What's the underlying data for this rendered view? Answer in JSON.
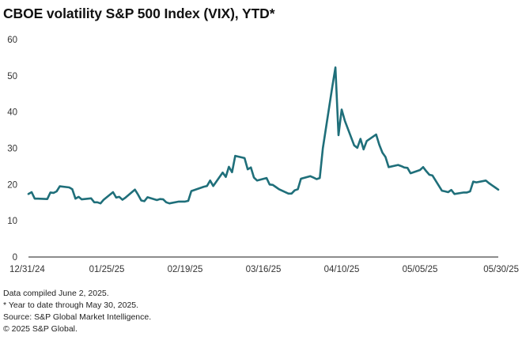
{
  "chart_data": {
    "type": "line",
    "title": "CBOE volatility S&P 500 Index (VIX), YTD*",
    "xlabel": "",
    "ylabel": "",
    "ylim": [
      0,
      60
    ],
    "yticks": [
      "0",
      "10",
      "20",
      "30",
      "40",
      "50",
      "60"
    ],
    "xticks": [
      "12/31/24",
      "01/25/25",
      "02/19/25",
      "03/16/25",
      "04/10/25",
      "05/05/25",
      "05/30/25"
    ],
    "grid": false,
    "color": "#1f6f7a",
    "series": [
      {
        "name": "VIX",
        "x": [
          0,
          1,
          2,
          3,
          6,
          7,
          8,
          9,
          10,
          13,
          14,
          15,
          16,
          17,
          20,
          21,
          22,
          23,
          24,
          27,
          28,
          29,
          30,
          31,
          34,
          35,
          36,
          37,
          38,
          41,
          42,
          43,
          44,
          45,
          48,
          49,
          50,
          51,
          52,
          55,
          56,
          57,
          58,
          59,
          62,
          63,
          64,
          65,
          66,
          69,
          70,
          71,
          72,
          73,
          76,
          77,
          78,
          79,
          80,
          83,
          84,
          85,
          86,
          87,
          90,
          91,
          92,
          93,
          94,
          97,
          98,
          99,
          100,
          101,
          104,
          105,
          106,
          107,
          108,
          111,
          112,
          113,
          114,
          115,
          118,
          119,
          120,
          121,
          122,
          125,
          126,
          127,
          128,
          129,
          132,
          133,
          134,
          135,
          136,
          139,
          140,
          141,
          142,
          143,
          146,
          147,
          148,
          149,
          150
        ],
        "values": [
          17.4,
          17.9,
          16.1,
          16.1,
          16.0,
          17.8,
          17.7,
          18.1,
          19.5,
          19.2,
          18.7,
          16.1,
          16.6,
          15.9,
          16.2,
          15.1,
          15.1,
          14.8,
          15.8,
          17.9,
          16.4,
          16.6,
          15.8,
          16.4,
          18.6,
          17.2,
          15.6,
          15.4,
          16.5,
          15.7,
          16.0,
          15.9,
          15.1,
          14.8,
          15.3,
          15.3,
          15.3,
          15.5,
          18.2,
          19.1,
          19.4,
          19.6,
          21.1,
          19.6,
          23.3,
          22.1,
          24.9,
          23.4,
          27.9,
          27.3,
          24.2,
          24.7,
          21.9,
          21.1,
          21.8,
          20.0,
          19.9,
          19.3,
          18.7,
          17.5,
          17.5,
          18.4,
          18.7,
          21.6,
          22.3,
          21.9,
          21.5,
          21.8,
          30.0,
          46.9,
          52.3,
          33.6,
          40.7,
          37.6,
          30.8,
          30.1,
          32.6,
          29.7,
          32.0,
          33.8,
          31.0,
          28.8,
          27.6,
          24.8,
          25.4,
          25.1,
          24.7,
          24.6,
          23.1,
          24.0,
          24.8,
          23.7,
          22.7,
          22.5,
          18.3,
          18.1,
          17.9,
          18.5,
          17.4,
          17.8,
          17.8,
          18.1,
          20.8,
          20.6,
          21.1,
          20.4,
          19.8,
          19.2,
          18.6
        ]
      }
    ]
  },
  "notes": {
    "compiled": "Data compiled June 2, 2025.",
    "footnote": "* Year to date through May 30, 2025.",
    "source": "Source: S&P Global Market Intelligence.",
    "copyright": "© 2025 S&P Global."
  }
}
